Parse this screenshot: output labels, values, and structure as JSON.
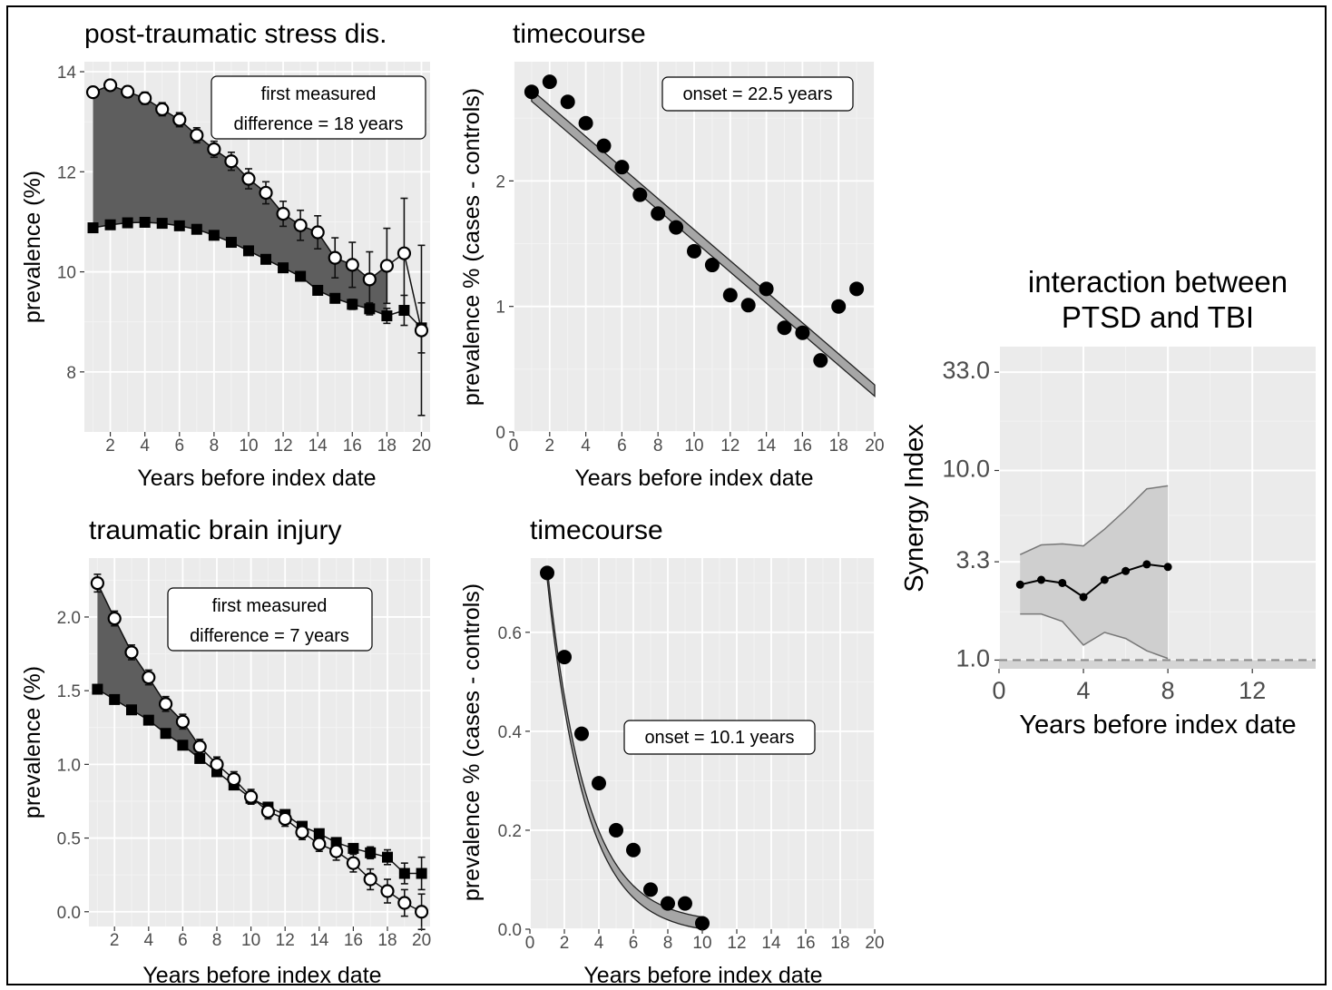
{
  "chart_data": [
    {
      "id": "ptsd_prev",
      "type": "line",
      "title": "post-traumatic stress dis.",
      "xlabel": "Years before index date",
      "ylabel": "prevalence (%)",
      "xlim": [
        0.5,
        20.5
      ],
      "ylim": [
        6.8,
        14.2
      ],
      "xticks": [
        2,
        4,
        6,
        8,
        10,
        12,
        14,
        16,
        18,
        20
      ],
      "yticks": [
        8,
        10,
        12,
        14
      ],
      "annotation": [
        "first measured",
        "difference = 18 years"
      ],
      "shade_until": 18,
      "series": [
        {
          "role": "cases",
          "marker": "circle-open",
          "x": [
            1,
            2,
            3,
            4,
            5,
            6,
            7,
            8,
            9,
            10,
            11,
            12,
            13,
            14,
            15,
            16,
            17,
            18,
            19,
            20
          ],
          "y": [
            13.59,
            13.73,
            13.6,
            13.47,
            13.25,
            13.04,
            12.73,
            12.45,
            12.21,
            11.86,
            11.58,
            11.16,
            10.93,
            10.79,
            10.28,
            10.14,
            9.85,
            10.12,
            10.37,
            8.83
          ],
          "err": [
            0.1,
            0.1,
            0.11,
            0.12,
            0.13,
            0.14,
            0.15,
            0.16,
            0.18,
            0.2,
            0.22,
            0.25,
            0.3,
            0.33,
            0.4,
            0.45,
            0.55,
            0.75,
            1.1,
            1.7
          ]
        },
        {
          "role": "controls",
          "marker": "square-filled",
          "x": [
            1,
            2,
            3,
            4,
            5,
            6,
            7,
            8,
            9,
            10,
            11,
            12,
            13,
            14,
            15,
            16,
            17,
            18,
            19,
            20
          ],
          "y": [
            10.88,
            10.94,
            10.98,
            10.99,
            10.97,
            10.92,
            10.85,
            10.73,
            10.59,
            10.42,
            10.25,
            10.08,
            9.91,
            9.63,
            9.47,
            9.35,
            9.26,
            9.12,
            9.23,
            8.88
          ],
          "err": [
            0.04,
            0.04,
            0.04,
            0.04,
            0.04,
            0.05,
            0.05,
            0.05,
            0.05,
            0.06,
            0.06,
            0.07,
            0.07,
            0.08,
            0.09,
            0.1,
            0.12,
            0.15,
            0.3,
            0.5
          ]
        }
      ]
    },
    {
      "id": "ptsd_time",
      "type": "scatter",
      "title": "timecourse",
      "xlabel": "Years before index date",
      "ylabel": "prevalence % (cases - controls)",
      "xlim": [
        0,
        20
      ],
      "ylim": [
        0,
        2.95
      ],
      "xticks": [
        0,
        2,
        4,
        6,
        8,
        10,
        12,
        14,
        16,
        18,
        20
      ],
      "yticks": [
        0,
        1,
        2
      ],
      "annotation": "onset = 22.5 years",
      "fit": {
        "kind": "linear",
        "x": [
          1,
          20
        ],
        "y": [
          2.68,
          0.33
        ],
        "band": 0.045
      },
      "x": [
        1,
        2,
        3,
        4,
        5,
        6,
        7,
        8,
        9,
        10,
        11,
        12,
        13,
        14,
        15,
        16,
        17,
        18,
        19
      ],
      "y": [
        2.71,
        2.79,
        2.63,
        2.46,
        2.28,
        2.11,
        1.89,
        1.74,
        1.63,
        1.44,
        1.33,
        1.09,
        1.01,
        1.14,
        0.83,
        0.79,
        0.57,
        1.0,
        1.14
      ]
    },
    {
      "id": "tbi_prev",
      "type": "line",
      "title": "traumatic brain injury",
      "xlabel": "Years before index date",
      "ylabel": "prevalence (%)",
      "xlim": [
        0.5,
        20.5
      ],
      "ylim": [
        -0.1,
        2.4
      ],
      "xticks": [
        2,
        4,
        6,
        8,
        10,
        12,
        14,
        16,
        18,
        20
      ],
      "yticks": [
        0.0,
        0.5,
        1.0,
        1.5,
        2.0
      ],
      "annotation": [
        "first measured",
        "difference = 7 years"
      ],
      "shade_until": 7,
      "series": [
        {
          "role": "cases",
          "marker": "circle-open",
          "x": [
            1,
            2,
            3,
            4,
            5,
            6,
            7,
            8,
            9,
            10,
            11,
            12,
            13,
            14,
            15,
            16,
            17,
            18,
            19,
            20
          ],
          "y": [
            2.23,
            1.99,
            1.76,
            1.59,
            1.41,
            1.29,
            1.12,
            1.0,
            0.9,
            0.78,
            0.68,
            0.63,
            0.54,
            0.46,
            0.41,
            0.33,
            0.22,
            0.14,
            0.06,
            0.0
          ],
          "err": [
            0.06,
            0.05,
            0.05,
            0.05,
            0.05,
            0.05,
            0.05,
            0.05,
            0.05,
            0.05,
            0.05,
            0.05,
            0.05,
            0.05,
            0.06,
            0.06,
            0.07,
            0.08,
            0.09,
            0.12
          ]
        },
        {
          "role": "controls",
          "marker": "square-filled",
          "x": [
            1,
            2,
            3,
            4,
            5,
            6,
            7,
            8,
            9,
            10,
            11,
            12,
            13,
            14,
            15,
            16,
            17,
            18,
            19,
            20
          ],
          "y": [
            1.51,
            1.44,
            1.37,
            1.3,
            1.21,
            1.13,
            1.04,
            0.95,
            0.86,
            0.77,
            0.71,
            0.66,
            0.58,
            0.53,
            0.47,
            0.43,
            0.4,
            0.37,
            0.26,
            0.26
          ],
          "err": [
            0.02,
            0.02,
            0.02,
            0.02,
            0.02,
            0.02,
            0.02,
            0.02,
            0.02,
            0.02,
            0.02,
            0.02,
            0.02,
            0.03,
            0.03,
            0.03,
            0.04,
            0.05,
            0.07,
            0.11
          ]
        }
      ]
    },
    {
      "id": "tbi_time",
      "type": "scatter",
      "title": "timecourse",
      "xlabel": "Years before index date",
      "ylabel": "prevalence % (cases - controls)",
      "xlim": [
        0,
        20
      ],
      "ylim": [
        0,
        0.75
      ],
      "xticks": [
        0,
        2,
        4,
        6,
        8,
        10,
        12,
        14,
        16,
        18,
        20
      ],
      "yticks": [
        0.0,
        0.2,
        0.4,
        0.6
      ],
      "annotation": "onset = 10.1 years",
      "fit": {
        "kind": "exponential",
        "a": 0.72,
        "b": 1,
        "x1": 10.1,
        "band": 0.012
      },
      "x": [
        1,
        2,
        3,
        4,
        5,
        6,
        7,
        8,
        9,
        10
      ],
      "y": [
        0.72,
        0.55,
        0.395,
        0.295,
        0.2,
        0.16,
        0.08,
        0.052,
        0.052,
        0.012
      ]
    },
    {
      "id": "synergy",
      "type": "line",
      "title": [
        "interaction between",
        "PTSD and TBI"
      ],
      "xlabel": "Years before index date",
      "ylabel": "Synergy Index",
      "scale_y": "log",
      "xlim": [
        0,
        15
      ],
      "ylim": [
        0.9,
        45
      ],
      "xticks": [
        0,
        4,
        8,
        12
      ],
      "yticks": [
        1.0,
        3.3,
        10.0,
        33.0
      ],
      "reference_line": 1.0,
      "x": [
        1,
        2,
        3,
        4,
        5,
        6,
        7,
        8
      ],
      "y": [
        2.5,
        2.65,
        2.55,
        2.15,
        2.65,
        2.95,
        3.2,
        3.1
      ],
      "lower": [
        1.75,
        1.75,
        1.6,
        1.2,
        1.4,
        1.3,
        1.12,
        1.02
      ],
      "upper": [
        3.6,
        4.05,
        4.1,
        4.0,
        4.9,
        6.2,
        8.0,
        8.3
      ]
    }
  ]
}
